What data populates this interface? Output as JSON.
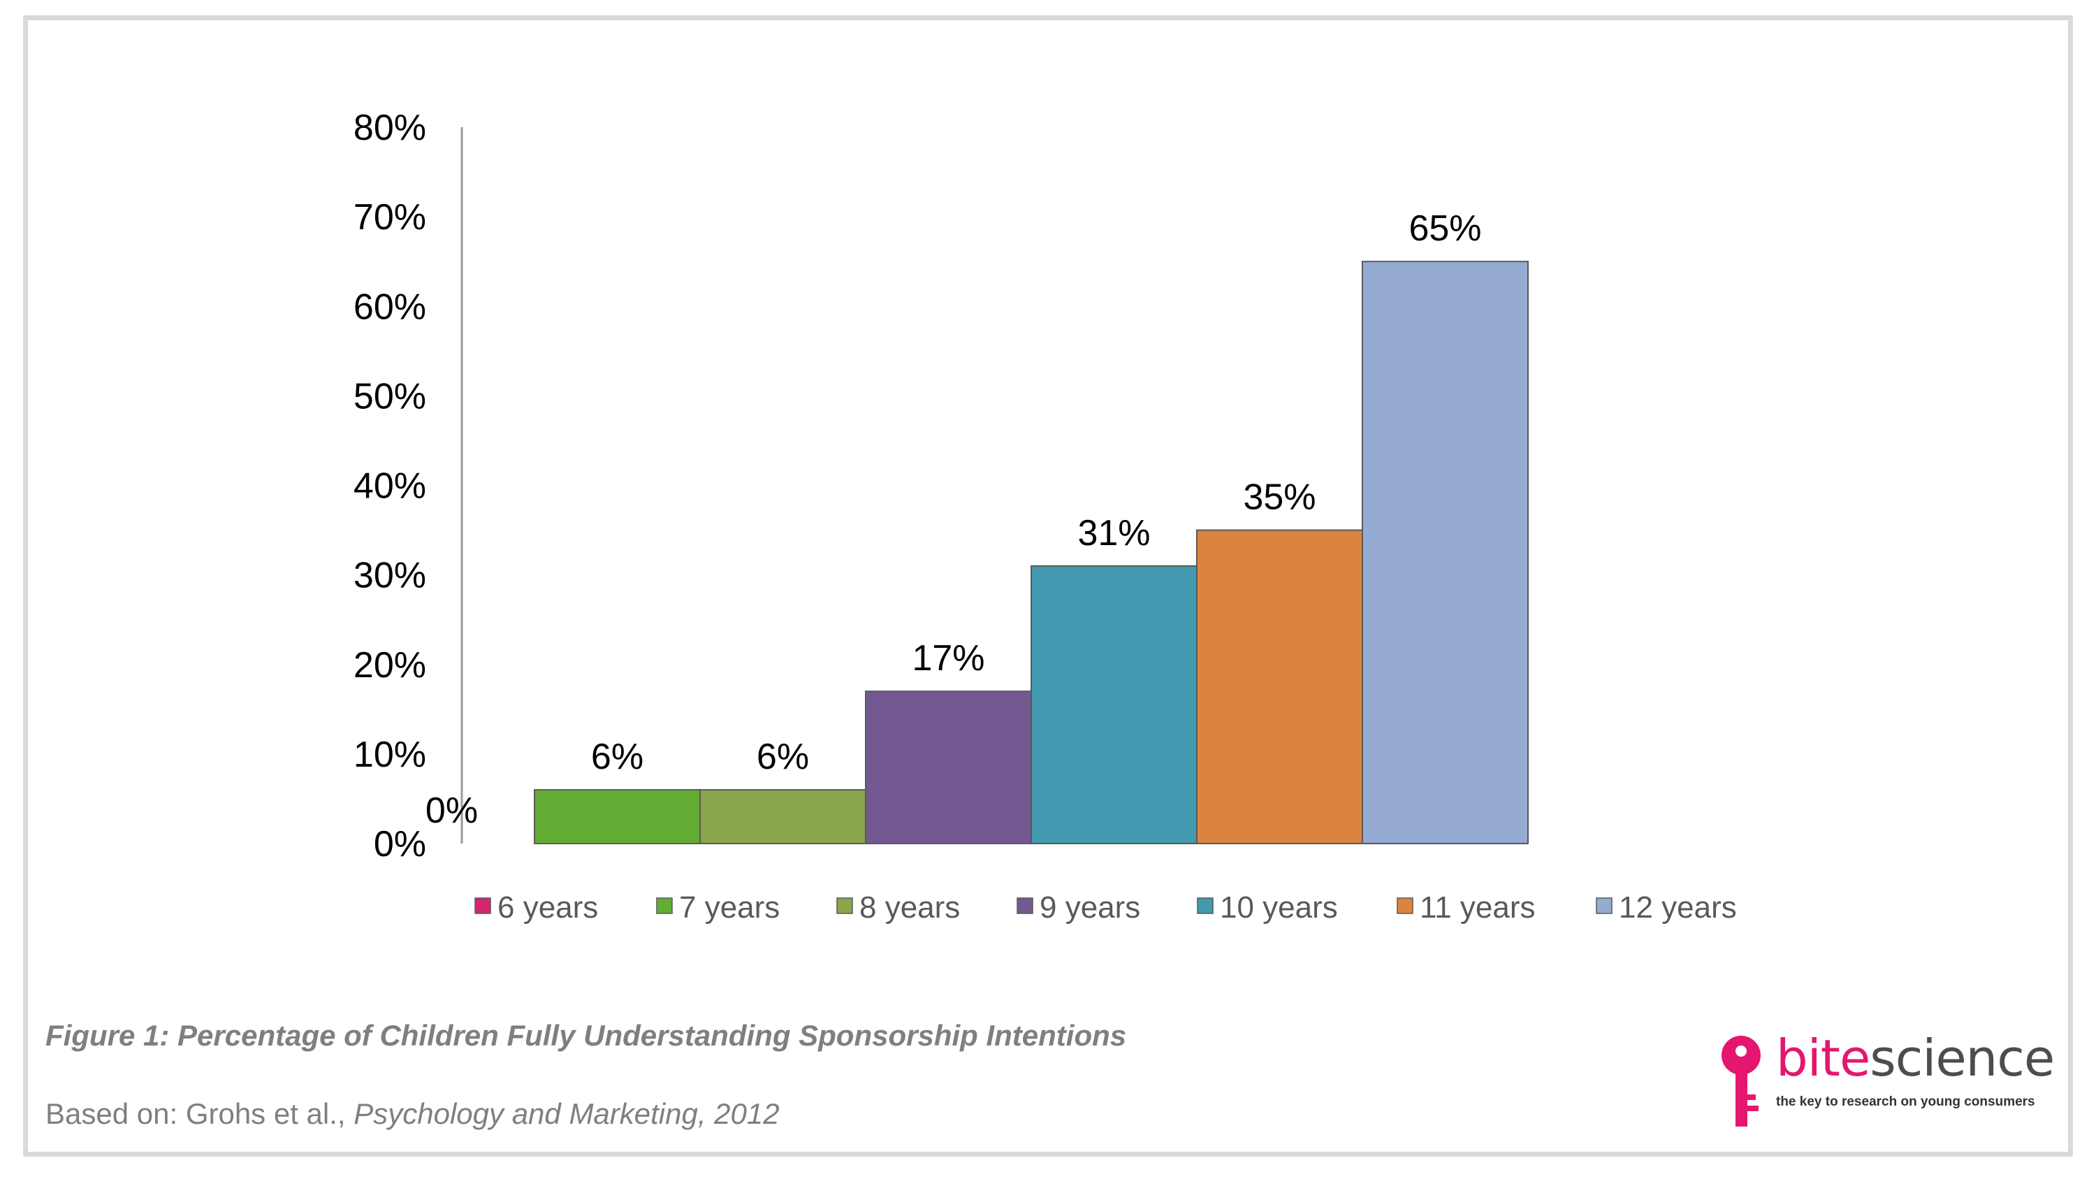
{
  "chart_data": {
    "type": "bar",
    "categories": [
      "6 years",
      "7 years",
      "8 years",
      "9 years",
      "10 years",
      "11 years",
      "12 years"
    ],
    "values": [
      0,
      6,
      6,
      17,
      31,
      35,
      65
    ],
    "data_labels": [
      "0%",
      "6%",
      "6%",
      "17%",
      "31%",
      "35%",
      "65%"
    ],
    "colors": [
      "#d6246e",
      "#63ad35",
      "#8aa54c",
      "#735891",
      "#4399b0",
      "#dc843f",
      "#96abd2"
    ],
    "ylim": [
      0,
      80
    ],
    "y_ticks": [
      0,
      10,
      20,
      30,
      40,
      50,
      60,
      70,
      80
    ],
    "y_tick_labels": [
      "0%",
      "10%",
      "20%",
      "30%",
      "40%",
      "50%",
      "60%",
      "70%",
      "80%"
    ],
    "grid": false,
    "legend_position": "bottom"
  },
  "caption": {
    "figure_title": "Figure 1: Percentage of Children Fully Understanding Sponsorship Intentions",
    "source_prefix": "Based on: Grohs et al., ",
    "source_journal": "Psychology and Marketing, 2012"
  },
  "brand": {
    "name_part1": "bite",
    "name_part2": "science",
    "tagline": "the key to research on young consumers",
    "logo_icon": "key-icon",
    "primary_color": "#e5166f"
  }
}
